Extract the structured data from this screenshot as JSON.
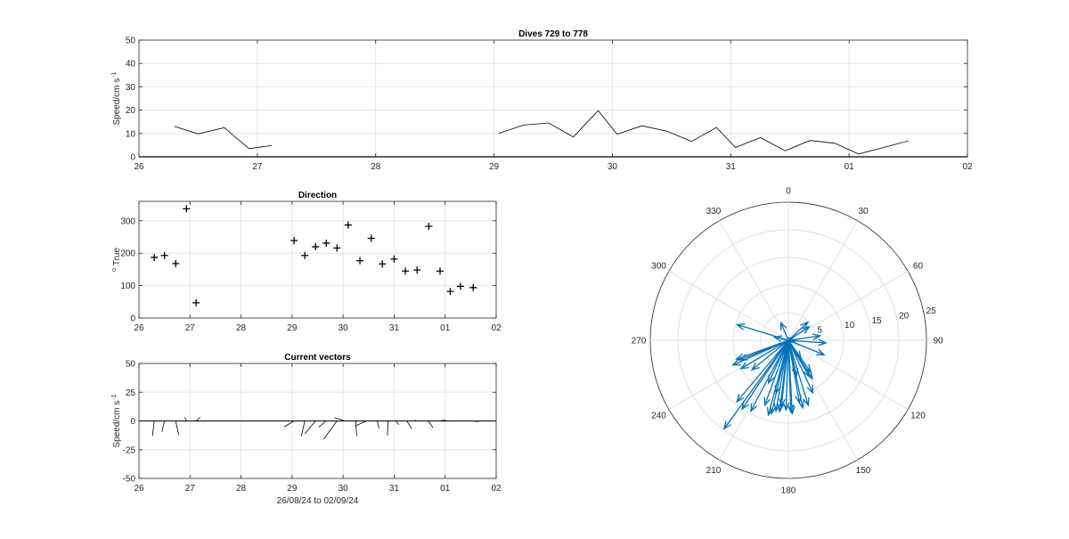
{
  "chart_data": [
    {
      "id": "speed",
      "type": "line",
      "title": "Dives 729 to 778",
      "ylabel": "Speed/cm s",
      "ylabel_sup": "-1",
      "xlim": [
        26,
        33
      ],
      "ylim": [
        0,
        50
      ],
      "xticks": [
        "26",
        "27",
        "28",
        "29",
        "30",
        "31",
        "01",
        "02"
      ],
      "yticks": [
        0,
        10,
        20,
        30,
        40,
        50
      ],
      "grid": true,
      "segments": [
        [
          [
            26.3,
            13
          ],
          [
            26.5,
            9.8
          ],
          [
            26.72,
            12.5
          ],
          [
            26.93,
            3.5
          ],
          [
            27.12,
            4.8
          ]
        ],
        [
          [
            29.04,
            10
          ],
          [
            29.25,
            13.6
          ],
          [
            29.46,
            14.5
          ],
          [
            29.67,
            8.5
          ],
          [
            29.88,
            19.8
          ],
          [
            30.04,
            9.7
          ],
          [
            30.25,
            13.3
          ],
          [
            30.46,
            11
          ],
          [
            30.67,
            6.6
          ],
          [
            30.88,
            12.6
          ],
          [
            31.04,
            4
          ],
          [
            31.25,
            8.2
          ],
          [
            31.46,
            2.6
          ],
          [
            31.67,
            7
          ],
          [
            31.88,
            5.8
          ],
          [
            32.08,
            1.2
          ],
          [
            32.5,
            6.8
          ]
        ]
      ]
    },
    {
      "id": "direction",
      "type": "scatter",
      "title": "Direction",
      "ylabel": "True",
      "ylabel_sup": "o",
      "xlim": [
        26,
        33
      ],
      "ylim": [
        0,
        360
      ],
      "xticks": [
        "26",
        "27",
        "28",
        "29",
        "30",
        "31",
        "01",
        "02"
      ],
      "yticks": [
        0,
        100,
        200,
        300
      ],
      "grid": true,
      "points": [
        [
          26.3,
          187
        ],
        [
          26.5,
          193
        ],
        [
          26.72,
          168
        ],
        [
          26.93,
          337
        ],
        [
          27.12,
          47
        ],
        [
          29.04,
          239
        ],
        [
          29.25,
          193
        ],
        [
          29.46,
          220
        ],
        [
          29.67,
          231
        ],
        [
          29.88,
          216
        ],
        [
          30.1,
          287
        ],
        [
          30.33,
          177
        ],
        [
          30.55,
          246
        ],
        [
          30.77,
          167
        ],
        [
          31.0,
          182
        ],
        [
          31.22,
          145
        ],
        [
          31.45,
          148
        ],
        [
          31.68,
          283
        ],
        [
          31.9,
          145
        ],
        [
          32.1,
          82
        ],
        [
          32.3,
          98
        ],
        [
          32.55,
          94
        ]
      ]
    },
    {
      "id": "vectors",
      "type": "line",
      "title": "Current vectors",
      "ylabel": "Speed/cm s",
      "ylabel_sup": "-1",
      "xlabel": "26/08/24 to 02/09/24",
      "xlim": [
        26,
        33
      ],
      "ylim": [
        -50,
        50
      ],
      "xticks": [
        "26",
        "27",
        "28",
        "29",
        "30",
        "31",
        "01",
        "02"
      ],
      "yticks": [
        50,
        25,
        0,
        -25,
        -50
      ],
      "grid": true,
      "sticks": [
        [
          26.3,
          13,
          187
        ],
        [
          26.5,
          9.8,
          193
        ],
        [
          26.72,
          12.5,
          168
        ],
        [
          26.93,
          3.5,
          337
        ],
        [
          27.12,
          4.8,
          47
        ],
        [
          29.04,
          10,
          239
        ],
        [
          29.25,
          13.6,
          193
        ],
        [
          29.46,
          14.5,
          220
        ],
        [
          29.67,
          8.5,
          231
        ],
        [
          29.88,
          19.8,
          216
        ],
        [
          30.04,
          9.7,
          287
        ],
        [
          30.25,
          13.3,
          177
        ],
        [
          30.46,
          11,
          246
        ],
        [
          30.67,
          6.6,
          167
        ],
        [
          30.88,
          12.6,
          182
        ],
        [
          31.04,
          4,
          145
        ],
        [
          31.25,
          8.2,
          148
        ],
        [
          31.46,
          2.6,
          283
        ],
        [
          31.67,
          7,
          145
        ],
        [
          31.88,
          5.8,
          82
        ],
        [
          32.08,
          1.2,
          98
        ],
        [
          32.5,
          6.8,
          94
        ]
      ]
    },
    {
      "id": "compass",
      "type": "polar",
      "rlim": [
        0,
        25
      ],
      "rticks": [
        "5",
        "10",
        "15",
        "20",
        "25"
      ],
      "angle_labels": [
        "0",
        "30",
        "60",
        "90",
        "120",
        "150",
        "180",
        "210",
        "240",
        "270",
        "300",
        "330"
      ],
      "color": "#0072BD",
      "vectors": [
        [
          13,
          187
        ],
        [
          9.8,
          193
        ],
        [
          12.5,
          168
        ],
        [
          3.5,
          337
        ],
        [
          4.8,
          47
        ],
        [
          10,
          239
        ],
        [
          13.6,
          193
        ],
        [
          14.5,
          220
        ],
        [
          8.5,
          231
        ],
        [
          19.8,
          216
        ],
        [
          9.7,
          287
        ],
        [
          13.3,
          177
        ],
        [
          11,
          246
        ],
        [
          6.6,
          167
        ],
        [
          12.6,
          182
        ],
        [
          4,
          145
        ],
        [
          8.2,
          148
        ],
        [
          2.6,
          283
        ],
        [
          7,
          145
        ],
        [
          5.8,
          82
        ],
        [
          1.2,
          98
        ],
        [
          6.8,
          94
        ],
        [
          8.5,
          205
        ],
        [
          15,
          214
        ],
        [
          12,
          186
        ],
        [
          11.5,
          170
        ],
        [
          14,
          195
        ],
        [
          13,
          178
        ],
        [
          12.3,
          163
        ],
        [
          10.5,
          155
        ],
        [
          7.5,
          150
        ],
        [
          7,
          112
        ],
        [
          4.5,
          57
        ],
        [
          9.5,
          248
        ],
        [
          10,
          250
        ],
        [
          12.5,
          200
        ],
        [
          14.5,
          208
        ],
        [
          13,
          190
        ]
      ]
    }
  ]
}
